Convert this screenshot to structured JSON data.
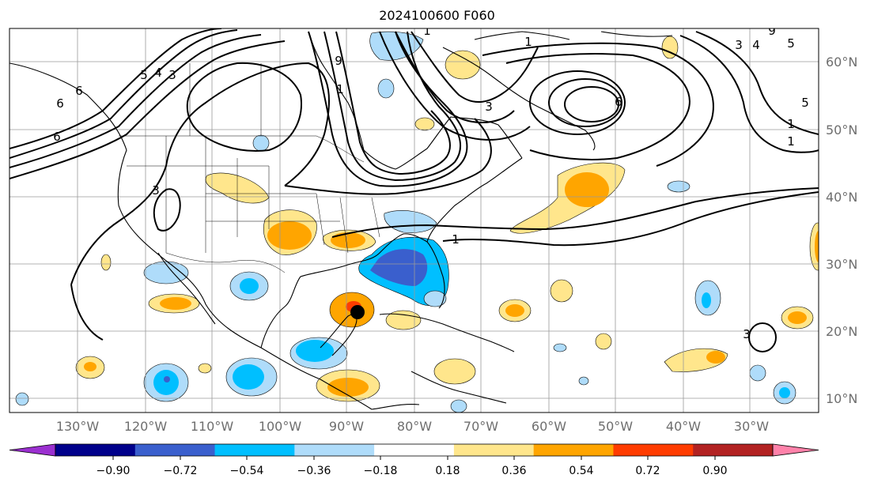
{
  "title": "2024100600 F060",
  "lon_labels": [
    "130°W",
    "120°W",
    "110°W",
    "100°W",
    "90°W",
    "80°W",
    "70°W",
    "60°W",
    "50°W",
    "40°W",
    "30°W"
  ],
  "lat_labels": [
    "60°N",
    "50°N",
    "40°N",
    "30°N",
    "20°N",
    "10°N"
  ],
  "colorbar": {
    "ticks": [
      "−0.90",
      "−0.72",
      "−0.54",
      "−0.36",
      "−0.18",
      "0.18",
      "0.36",
      "0.54",
      "0.72",
      "0.90"
    ],
    "colors": [
      "#9b30d0",
      "#00008b",
      "#3a5fcd",
      "#00bfff",
      "#afdcfa",
      "#ffffff",
      "#ffe68c",
      "#ffa500",
      "#ff3c00",
      "#b22222",
      "#ff82aa"
    ]
  },
  "contour_labels": [
    "5",
    "4",
    "3",
    "6",
    "6",
    "3",
    "9",
    "3",
    "1",
    "6",
    "1",
    "3",
    "1",
    "9",
    "3",
    "4",
    "5",
    "6",
    "5",
    "1",
    "1",
    "1"
  ],
  "storm_marker": {
    "name": "storm-center",
    "color": "#000000"
  }
}
